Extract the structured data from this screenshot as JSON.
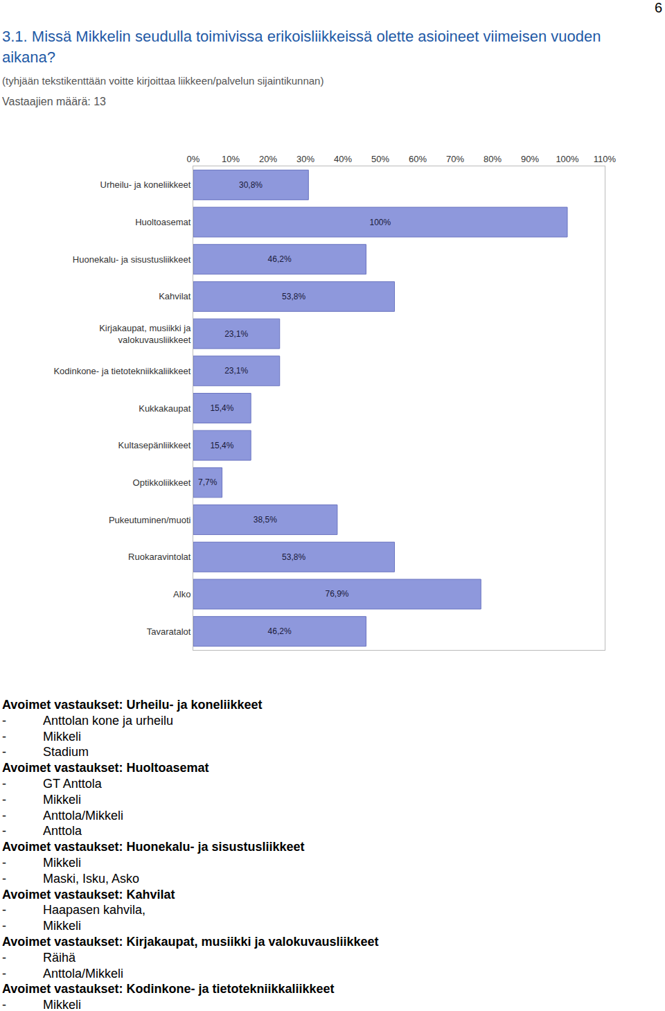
{
  "page_number": "6",
  "heading": "3.1. Missä Mikkelin seudulla toimivissa erikoisliikkeissä olette asioineet viimeisen vuoden aikana?",
  "note": "(tyhjään tekstikenttään voitte kirjoittaa liikkeen/palvelun sijaintikunnan)",
  "respondents": "Vastaajien määrä: 13",
  "chart_data": {
    "type": "bar",
    "orientation": "horizontal",
    "categories": [
      "Urheilu- ja koneliikkeet",
      "Huoltoasemat",
      "Huonekalu- ja sisustusliikkeet",
      "Kahvilat",
      "Kirjakaupat, musiikki ja valokuvausliikkeet",
      "Kodinkone- ja tietotekniikkaliikkeet",
      "Kukkakaupat",
      "Kultasepänliikkeet",
      "Optikkoliikkeet",
      "Pukeutuminen/muoti",
      "Ruokaravintolat",
      "Alko",
      "Tavaratalot"
    ],
    "values": [
      30.8,
      100,
      46.2,
      53.8,
      23.1,
      23.1,
      15.4,
      15.4,
      7.7,
      38.5,
      53.8,
      76.9,
      46.2
    ],
    "value_labels": [
      "30,8%",
      "100%",
      "46,2%",
      "53,8%",
      "23,1%",
      "23,1%",
      "15,4%",
      "15,4%",
      "7,7%",
      "38,5%",
      "53,8%",
      "76,9%",
      "46,2%"
    ],
    "data_labels": true,
    "color": "#8e98dc",
    "xlim": [
      0,
      110
    ],
    "xticks": [
      {
        "value": 0,
        "label": "0%"
      },
      {
        "value": 10,
        "label": "10%"
      },
      {
        "value": 20,
        "label": "20%"
      },
      {
        "value": 30,
        "label": "30%"
      },
      {
        "value": 40,
        "label": "40%"
      },
      {
        "value": 50,
        "label": "50%"
      },
      {
        "value": 60,
        "label": "60%"
      },
      {
        "value": 70,
        "label": "70%"
      },
      {
        "value": 80,
        "label": "80%"
      },
      {
        "value": 90,
        "label": "90%"
      },
      {
        "value": 100,
        "label": "100%"
      },
      {
        "value": 110,
        "label": "110%"
      }
    ],
    "grid": false
  },
  "bullet": "-",
  "open_answers": [
    {
      "title": "Avoimet vastaukset: Urheilu- ja koneliikkeet",
      "items": [
        "Anttolan kone ja urheilu",
        "Mikkeli",
        "Stadium"
      ]
    },
    {
      "title": "Avoimet vastaukset: Huoltoasemat",
      "items": [
        "GT Anttola",
        "Mikkeli",
        "Anttola/Mikkeli",
        "Anttola"
      ]
    },
    {
      "title": "Avoimet vastaukset: Huonekalu- ja sisustusliikkeet",
      "items": [
        "Mikkeli",
        "Maski, Isku, Asko"
      ]
    },
    {
      "title": "Avoimet vastaukset: Kahvilat",
      "items": [
        "Haapasen kahvila,",
        "Mikkeli"
      ]
    },
    {
      "title": "Avoimet vastaukset: Kirjakaupat, musiikki ja valokuvausliikkeet",
      "items": [
        "Räihä",
        "Anttola/Mikkeli"
      ]
    },
    {
      "title": "Avoimet vastaukset: Kodinkone- ja tietotekniikkaliikkeet",
      "items": [
        "Mikkeli"
      ]
    }
  ]
}
